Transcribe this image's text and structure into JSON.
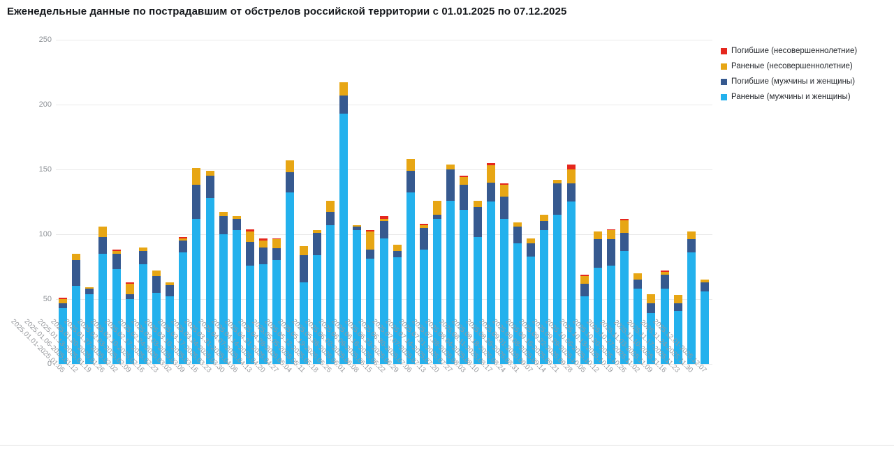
{
  "title": "Еженедельные данные по пострадавшим от обстрелов российской территории с 01.01.2025 по 07.12.2025",
  "colors": {
    "killed_minors": "#e5271d",
    "wounded_minors": "#e7a614",
    "killed_adults": "#36598f",
    "wounded_adults": "#23b1ed",
    "grid": "#e9e9e9",
    "axis_text": "#8d9196"
  },
  "chart_data": {
    "type": "bar",
    "stacked": true,
    "title": "Еженедельные данные по пострадавшим от обстрелов российской территории с 01.01.2025 по 07.12.2025",
    "xlabel": "",
    "ylabel": "",
    "ylim": [
      0,
      250
    ],
    "yticks": [
      "0",
      "50",
      "100",
      "150",
      "200",
      "250"
    ],
    "grid": true,
    "legend_position": "top-right",
    "categories": [
      "2025.01.01-2025.01.05",
      "2025.01.06-2025.01.12",
      "2025.01.13-2025.01.19",
      "2025.01.20-2025.01.26",
      "2025.01.27-2025.02.02",
      "2025.02.03-2025.02.09",
      "2025.02.10-2025.02.16",
      "2025.02.17-2025.02.23",
      "2025.02.24-2025.03.02",
      "2025.03.03-2025.03.09",
      "2025.03.10-2025.03.16",
      "2025.03.17-2025.03.23",
      "2025.03.24-2025.03.30",
      "2025.03.31-2025.04.06",
      "2025.04.07-2025.04.13",
      "2025.04.14-2025.04.20",
      "2025.04.21-2025.04.27",
      "2025.04.28-2025.05.04",
      "2025.05.05-2025.05.11",
      "2025.05.12-2025.05.18",
      "2025.05.19-2025.05.25",
      "2025.05.26-2025.06.01",
      "2025.06.02-2025.06.08",
      "2025.06.09-2025.06.15",
      "2025.06.16-2025.06.22",
      "2025.06.23-2025.06.29",
      "2025.06.30-2025.07.06",
      "2025.07.07-2025.07.13",
      "2025.07.14-2025.07.20",
      "2025.07.21-2025.07.27",
      "2025.07.28-2025.08.03",
      "2025.08.04-2025.08.10",
      "2025.08.11-2025.08.17",
      "2025.08.18-2025.08.24",
      "2025.08.25-2025.08.31",
      "2025.09.01-2025.09.07",
      "2025.09.08-2025.09.14",
      "2025.09.15-2025.09.21",
      "2025.09.22-2025.09.28",
      "2025.09.29-2025.10.05",
      "2025.10.06-2025.10.12",
      "2025.10.13-2025.10.19",
      "2025.10.20-2025.10.26",
      "2025.10.27-2025.11.02",
      "2025.11.03-2025.11.09",
      "2025.11.10-2025.11.16",
      "2025.11.17-2025.11.23",
      "2025.11.24-2025.11.30",
      "2025.12.01-2025.12.07"
    ],
    "series": [
      {
        "name": "Погибшие (несовершеннолетние)",
        "color": "#e5271d",
        "values": [
          1,
          0,
          0,
          0,
          1,
          1,
          0,
          0,
          0,
          1,
          0,
          0,
          0,
          0,
          2,
          2,
          1,
          0,
          0,
          0,
          0,
          0,
          0,
          1,
          2,
          0,
          0,
          1,
          0,
          0,
          1,
          0,
          2,
          1,
          0,
          0,
          0,
          0,
          4,
          1,
          0,
          1,
          1,
          0,
          0,
          1,
          0,
          0,
          0
        ]
      },
      {
        "name": "Раненые (несовершеннолетние)",
        "color": "#e7a614",
        "values": [
          3,
          5,
          1,
          8,
          2,
          8,
          3,
          4,
          2,
          2,
          13,
          4,
          3,
          2,
          8,
          5,
          7,
          9,
          7,
          2,
          9,
          10,
          1,
          14,
          2,
          5,
          9,
          2,
          11,
          4,
          6,
          5,
          13,
          9,
          3,
          4,
          5,
          3,
          11,
          6,
          6,
          7,
          10,
          5,
          7,
          2,
          6,
          6,
          2
        ]
      },
      {
        "name": "Погибшие (мужчины и женщины)",
        "color": "#36598f",
        "values": [
          4,
          20,
          4,
          13,
          12,
          4,
          10,
          13,
          9,
          9,
          26,
          17,
          14,
          9,
          18,
          13,
          9,
          16,
          21,
          17,
          10,
          14,
          3,
          7,
          13,
          5,
          17,
          17,
          3,
          24,
          19,
          23,
          15,
          17,
          13,
          10,
          7,
          24,
          14,
          10,
          22,
          20,
          14,
          7,
          8,
          11,
          6,
          10,
          7
        ]
      },
      {
        "name": "Раненые (мужчины и женщины)",
        "color": "#23b1ed",
        "values": [
          43,
          60,
          54,
          85,
          73,
          50,
          77,
          55,
          52,
          86,
          112,
          128,
          100,
          103,
          76,
          77,
          80,
          132,
          63,
          84,
          107,
          193,
          103,
          81,
          97,
          82,
          132,
          88,
          112,
          126,
          119,
          98,
          125,
          112,
          93,
          83,
          103,
          115,
          125,
          52,
          74,
          76,
          87,
          58,
          39,
          58,
          41,
          86,
          56
        ]
      }
    ],
    "stack_order_bottom_to_top": [
      "Раненые (мужчины и женщины)",
      "Погибшие (мужчины и женщины)",
      "Раненые (несовершеннолетние)",
      "Погибшие (несовершеннолетние)"
    ]
  }
}
